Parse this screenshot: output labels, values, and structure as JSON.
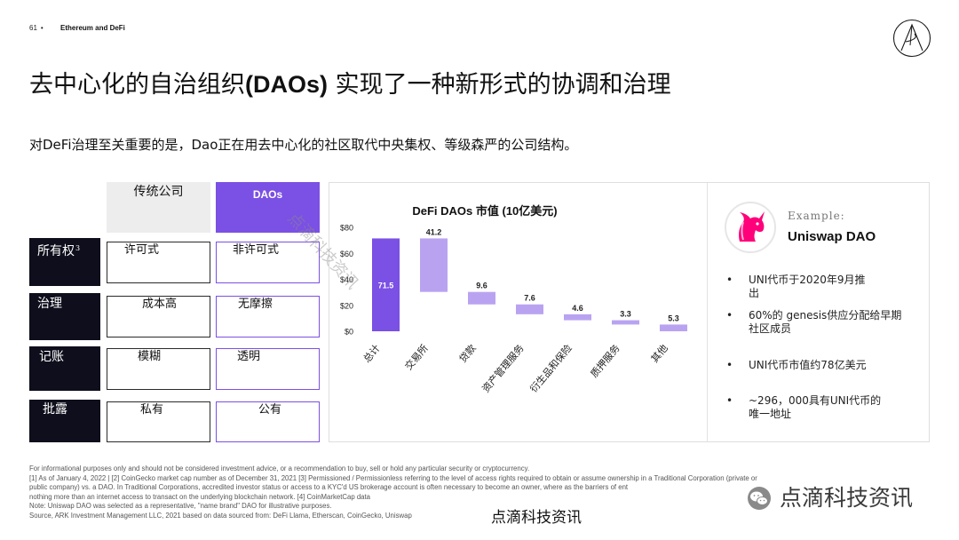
{
  "header": {
    "page_number": "61",
    "separator": "•",
    "section": "Ethereum and DeFi"
  },
  "logo_icon": "ark-logo-icon",
  "title": {
    "part1": "去中心化的自治组织",
    "part2": "(DAOs)",
    "part3": " 实现了一种新形式的协调和治理"
  },
  "subtitle": "对DeFi治理至关重要的是，Dao正在用去中心化的社区取代中央集权、等级森严的公司结构。",
  "comparison": {
    "columns": [
      "传统公司",
      "DAOs"
    ],
    "rows": [
      {
        "label": "所有权",
        "sup": "3",
        "traditional": "许可式",
        "dao": "非许可式"
      },
      {
        "label": "治理",
        "traditional": "成本高",
        "dao": "无摩擦"
      },
      {
        "label": "记账",
        "traditional": "模糊",
        "dao": "透明"
      },
      {
        "label": "批露",
        "traditional": "私有",
        "dao": "公有"
      }
    ]
  },
  "chart_data": {
    "type": "bar",
    "subtype": "waterfall",
    "title": "DeFi DAOs 市值 (10亿美元)",
    "categories": [
      "总计",
      "交易所",
      "贷款",
      "资产管理服务",
      "衍生品和保险",
      "质押服务",
      "其他"
    ],
    "values": [
      71.5,
      41.2,
      9.6,
      7.6,
      4.6,
      3.3,
      5.3
    ],
    "measure": [
      "total",
      "decrease",
      "decrease",
      "decrease",
      "decrease",
      "decrease",
      "decrease"
    ],
    "yticks": [
      80,
      60,
      40,
      20,
      0
    ],
    "ytick_labels": [
      "$80",
      "$60",
      "$40",
      "$20",
      "$0"
    ],
    "ylim": [
      0,
      80
    ],
    "grid": false,
    "legend": "none",
    "colors": {
      "total": "#7B50E4",
      "decrease": "#B9A3F1"
    }
  },
  "example": {
    "label": "Example:",
    "name": "Uniswap DAO",
    "logo_icon": "uniswap-unicorn-icon",
    "bullets": [
      [
        "UNI代币于2020年9月推",
        "出"
      ],
      [
        "60%的 genesis供应分配给早期",
        "社区成员"
      ],
      [
        "UNI代币市值约78亿美元"
      ],
      [
        "~296，000具有UNI代币的",
        "唯一地址"
      ]
    ]
  },
  "footer": {
    "lines": [
      "For informational purposes only and should not be considered investment advice, or a recommendation to buy, sell or hold any particular security or cryptocurrency.",
      "[1] As of January 4, 2022 | [2] CoinGecko market cap number as of December 31, 2021 [3] Permissioned / Permissionless referring to the level of access rights required to obtain or assume ownership in a Traditional Corporation (private or",
      "public company) vs. a DAO. In Traditional Corporations, accredited investor status or access to a KYC'd US brokerage account is often necessary to become an owner, where as the barriers of ent",
      "nothing more than an internet access to transact on the underlying blockchain network. [4] CoinMarketCap data",
      "Note: Uniswap DAO was selected as a representative, \"name brand\" DAO for illustrative purposes.",
      "Source, ARK Investment Management LLC, 2021 based on data sourced from: DeFi Llama, Etherscan, CoinGecko, Uniswap"
    ]
  },
  "watermarks": {
    "diagonal": "点滴科技资讯",
    "bottom": "点滴科技资讯",
    "overlay": "点滴科技资讯",
    "overlay_icon": "wechat-icon"
  },
  "colors": {
    "purple": "#7B50E4",
    "light_purple": "#B9A3F1",
    "dark": "#0E0E1C",
    "header_gray": "#EDEDED"
  }
}
